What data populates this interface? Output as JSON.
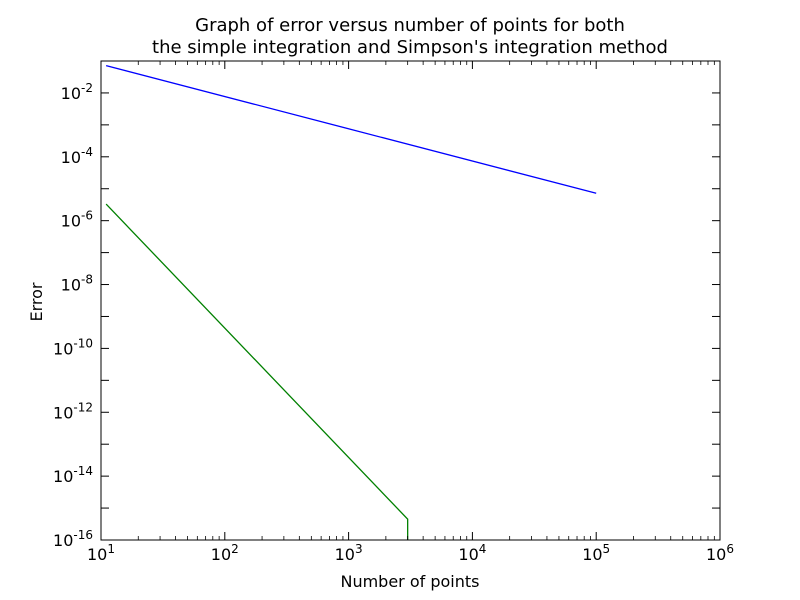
{
  "chart_data": {
    "type": "line",
    "title": [
      "Graph of error versus number of points for both",
      "the simple integration and Simpson's integration method"
    ],
    "xlabel": "Number of points",
    "ylabel": "Error",
    "x_scale": "log",
    "y_scale": "log",
    "xlim": [
      10,
      1000000
    ],
    "ylim": [
      1e-16,
      0.1
    ],
    "grid": false,
    "legend": "none",
    "x_ticks": [
      {
        "value": 10,
        "base": "10",
        "exp": "1"
      },
      {
        "value": 100,
        "base": "10",
        "exp": "2"
      },
      {
        "value": 1000,
        "base": "10",
        "exp": "3"
      },
      {
        "value": 10000,
        "base": "10",
        "exp": "4"
      },
      {
        "value": 100000,
        "base": "10",
        "exp": "5"
      },
      {
        "value": 1000000,
        "base": "10",
        "exp": "6"
      }
    ],
    "y_ticks": [
      {
        "value": 1e-16,
        "base": "10",
        "exp": "-16"
      },
      {
        "value": 1e-14,
        "base": "10",
        "exp": "-14"
      },
      {
        "value": 1e-12,
        "base": "10",
        "exp": "-12"
      },
      {
        "value": 1e-10,
        "base": "10",
        "exp": "-10"
      },
      {
        "value": 1e-08,
        "base": "10",
        "exp": "-8"
      },
      {
        "value": 1e-06,
        "base": "10",
        "exp": "-6"
      },
      {
        "value": 0.0001,
        "base": "10",
        "exp": "-4"
      },
      {
        "value": 0.01,
        "base": "10",
        "exp": "-2"
      }
    ],
    "series": [
      {
        "color": "#0000ff",
        "x": [
          11,
          100000
        ],
        "y": [
          0.0717,
          7.2e-06
        ]
      },
      {
        "color": "#008000",
        "x": [
          11,
          3000,
          3000
        ],
        "y": [
          3.3e-06,
          4.5e-16,
          1e-16
        ]
      }
    ]
  }
}
